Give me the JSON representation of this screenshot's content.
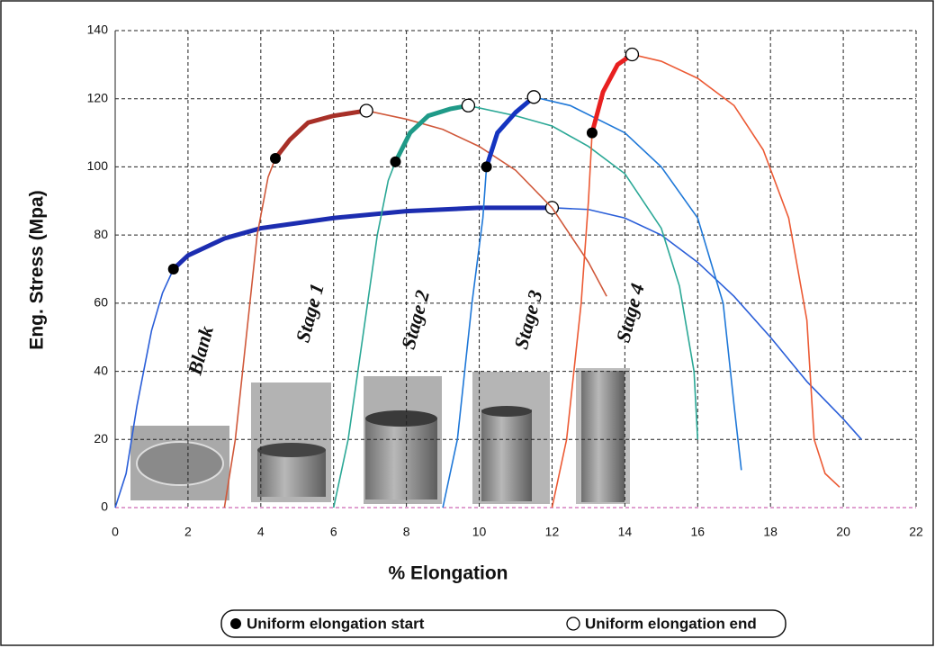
{
  "chart_data": {
    "type": "line",
    "xlabel": "% Elongation",
    "ylabel": "Eng. Stress (Mpa)",
    "xlim": [
      0,
      22
    ],
    "ylim": [
      0,
      140
    ],
    "xticks": [
      0,
      2,
      4,
      6,
      8,
      10,
      12,
      14,
      16,
      18,
      20,
      22
    ],
    "yticks": [
      0,
      20,
      40,
      60,
      80,
      100,
      120,
      140
    ],
    "grid": true,
    "marker_legend": [
      "Uniform elongation start",
      "Uniform elongation end"
    ],
    "series": [
      {
        "name": "Blank",
        "color": "#2a5ed8",
        "uniform_color": "#1c2db0",
        "x": [
          0,
          0.3,
          0.6,
          1.0,
          1.3,
          1.6,
          2,
          3,
          4,
          6,
          8,
          10,
          12,
          13,
          14,
          15,
          16,
          17,
          18,
          19,
          20,
          20.5
        ],
        "values": [
          0,
          10,
          30,
          52,
          63,
          70,
          74,
          79,
          82,
          85,
          87,
          88,
          88,
          87.5,
          85,
          80,
          72,
          62,
          50,
          37,
          26,
          20
        ],
        "uniform_start": {
          "x": 1.6,
          "y": 70
        },
        "uniform_end": {
          "x": 12,
          "y": 88
        }
      },
      {
        "name": "Stage 1",
        "color": "#d0583a",
        "uniform_color": "#a83028",
        "x": [
          3,
          3.3,
          3.6,
          3.9,
          4.2,
          4.4,
          4.8,
          5.3,
          6,
          6.9,
          8,
          9,
          10,
          11,
          12,
          13,
          13.5
        ],
        "values": [
          0,
          20,
          50,
          80,
          97,
          102.5,
          108,
          113,
          115,
          116.5,
          114,
          111,
          106,
          99,
          88,
          72,
          62
        ],
        "uniform_start": {
          "x": 4.4,
          "y": 102.5
        },
        "uniform_end": {
          "x": 6.9,
          "y": 116.5
        }
      },
      {
        "name": "Stage 2",
        "color": "#2ba896",
        "uniform_color": "#1f9a88",
        "x": [
          6,
          6.4,
          6.8,
          7.2,
          7.5,
          7.7,
          8.1,
          8.6,
          9.2,
          9.7,
          11,
          12,
          13,
          14,
          15,
          15.5,
          15.9,
          16
        ],
        "values": [
          0,
          20,
          50,
          80,
          96,
          101.5,
          110,
          115,
          117,
          118,
          115,
          112,
          106,
          98,
          82,
          65,
          40,
          20
        ],
        "uniform_start": {
          "x": 7.7,
          "y": 101.5
        },
        "uniform_end": {
          "x": 9.7,
          "y": 118
        }
      },
      {
        "name": "Stage 3",
        "color": "#1f78d8",
        "uniform_color": "#1434c0",
        "x": [
          9,
          9.4,
          9.8,
          10.1,
          10.2,
          10.5,
          11,
          11.5,
          12.5,
          14,
          15,
          16,
          16.7,
          17,
          17.2
        ],
        "values": [
          0,
          20,
          60,
          85,
          100,
          110,
          116,
          120.5,
          118,
          110,
          100,
          85,
          60,
          30,
          11
        ],
        "uniform_start": {
          "x": 10.2,
          "y": 100
        },
        "uniform_end": {
          "x": 11.5,
          "y": 120.5
        }
      },
      {
        "name": "Stage 4",
        "color": "#ec5a34",
        "uniform_color": "#e82020",
        "x": [
          12,
          12.4,
          12.8,
          13,
          13.1,
          13.4,
          13.8,
          14.2,
          15,
          16,
          17,
          17.8,
          18.5,
          19,
          19.2,
          19.5,
          19.9
        ],
        "values": [
          0,
          20,
          60,
          90,
          110,
          122,
          130,
          133,
          131,
          126,
          118,
          105,
          85,
          55,
          20,
          10,
          6
        ],
        "uniform_start": {
          "x": 13.1,
          "y": 110
        },
        "uniform_end": {
          "x": 14.2,
          "y": 133
        }
      }
    ]
  }
}
